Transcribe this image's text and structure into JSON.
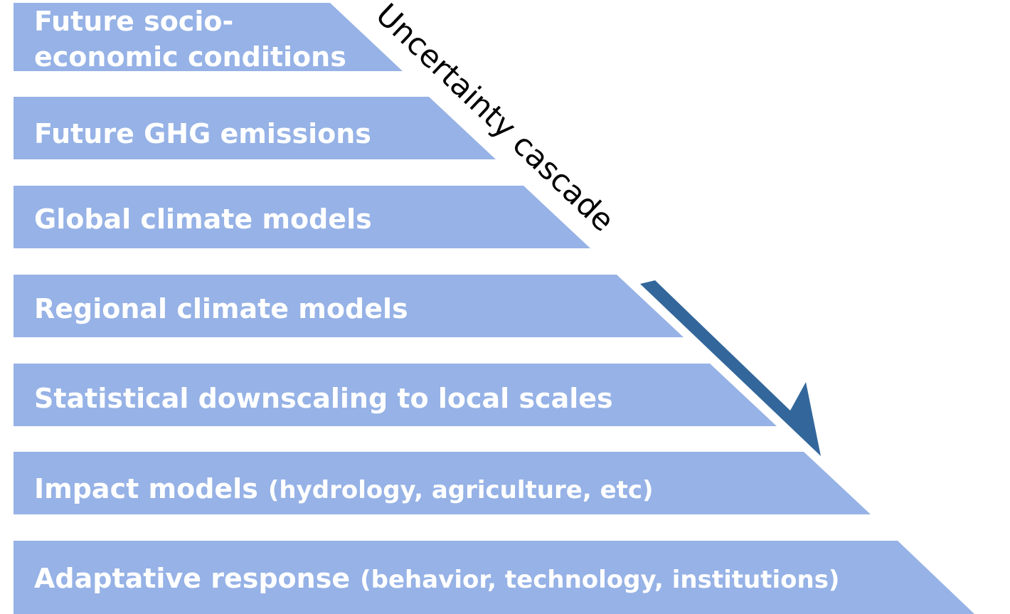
{
  "diagram": {
    "colors": {
      "band": "#96b2e6",
      "arrow": "#33679b",
      "band_text": "#ffffff",
      "label_text": "#000000"
    },
    "cascade_label": "Uncertainty cascade",
    "bands": [
      {
        "lines": [
          "Future socio-",
          "economic conditions"
        ]
      },
      {
        "main": "Future GHG emissions"
      },
      {
        "main": "Global climate models"
      },
      {
        "main": "Regional climate models"
      },
      {
        "main": "Statistical downscaling to local scales"
      },
      {
        "main": "Impact models",
        "sub": "(hydrology, agriculture, etc)"
      },
      {
        "main": "Adaptative response",
        "sub": "(behavior, technology, institutions)"
      }
    ]
  }
}
